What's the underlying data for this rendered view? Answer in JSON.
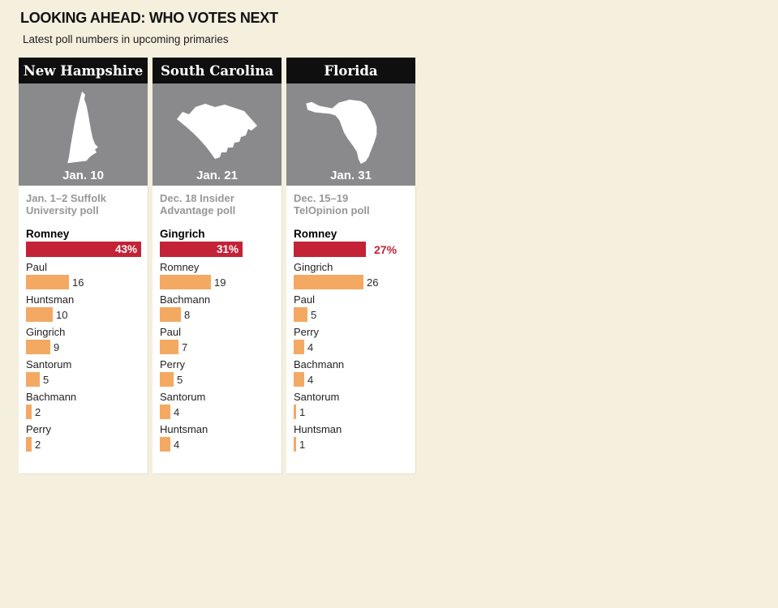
{
  "page": {
    "title": "LOOKING AHEAD: WHO VOTES NEXT",
    "subtitle": "Latest poll numbers in upcoming primaries"
  },
  "colors": {
    "background": "#f5efde",
    "panel": "#ffffff",
    "header_bg": "#0f0f0f",
    "map_box": "#8a8a8d",
    "map_silhouette": "#ffffff",
    "leader_bar": "#c32237",
    "bar": "#f4a963",
    "leader_value_inside": "#ffffff",
    "leader_value_outside": "#c32237",
    "poll_source_text": "#979797"
  },
  "chart_data": [
    {
      "type": "bar",
      "state": "New Hampshire",
      "primary_date": "Jan. 10",
      "map_icon": "new-hampshire-silhouette",
      "poll_source_lines": [
        "Jan. 1–2 Suffolk",
        "University poll"
      ],
      "leader_label_position": "inside",
      "xlim": [
        0,
        43
      ],
      "candidates": [
        {
          "name": "Romney",
          "value": 43,
          "label": "43%"
        },
        {
          "name": "Paul",
          "value": 16,
          "label": "16"
        },
        {
          "name": "Huntsman",
          "value": 10,
          "label": "10"
        },
        {
          "name": "Gingrich",
          "value": 9,
          "label": "9"
        },
        {
          "name": "Santorum",
          "value": 5,
          "label": "5"
        },
        {
          "name": "Bachmann",
          "value": 2,
          "label": "2"
        },
        {
          "name": "Perry",
          "value": 2,
          "label": "2"
        }
      ]
    },
    {
      "type": "bar",
      "state": "South Carolina",
      "primary_date": "Jan. 21",
      "map_icon": "south-carolina-silhouette",
      "poll_source_lines": [
        "Dec. 18 Insider",
        "Advantage poll"
      ],
      "leader_label_position": "inside",
      "xlim": [
        0,
        43
      ],
      "candidates": [
        {
          "name": "Gingrich",
          "value": 31,
          "label": "31%"
        },
        {
          "name": "Romney",
          "value": 19,
          "label": "19"
        },
        {
          "name": "Bachmann",
          "value": 8,
          "label": "8"
        },
        {
          "name": "Paul",
          "value": 7,
          "label": "7"
        },
        {
          "name": "Perry",
          "value": 5,
          "label": "5"
        },
        {
          "name": "Santorum",
          "value": 4,
          "label": "4"
        },
        {
          "name": "Huntsman",
          "value": 4,
          "label": "4"
        }
      ]
    },
    {
      "type": "bar",
      "state": "Florida",
      "primary_date": "Jan. 31",
      "map_icon": "florida-silhouette",
      "poll_source_lines": [
        "Dec. 15–19",
        "TelOpinion poll"
      ],
      "leader_label_position": "outside",
      "xlim": [
        0,
        43
      ],
      "candidates": [
        {
          "name": "Romney",
          "value": 27,
          "label": "27%"
        },
        {
          "name": "Gingrich",
          "value": 26,
          "label": "26"
        },
        {
          "name": "Paul",
          "value": 5,
          "label": "5"
        },
        {
          "name": "Perry",
          "value": 4,
          "label": "4"
        },
        {
          "name": "Bachmann",
          "value": 4,
          "label": "4"
        },
        {
          "name": "Santorum",
          "value": 1,
          "label": "1"
        },
        {
          "name": "Huntsman",
          "value": 1,
          "label": "1"
        }
      ]
    }
  ]
}
